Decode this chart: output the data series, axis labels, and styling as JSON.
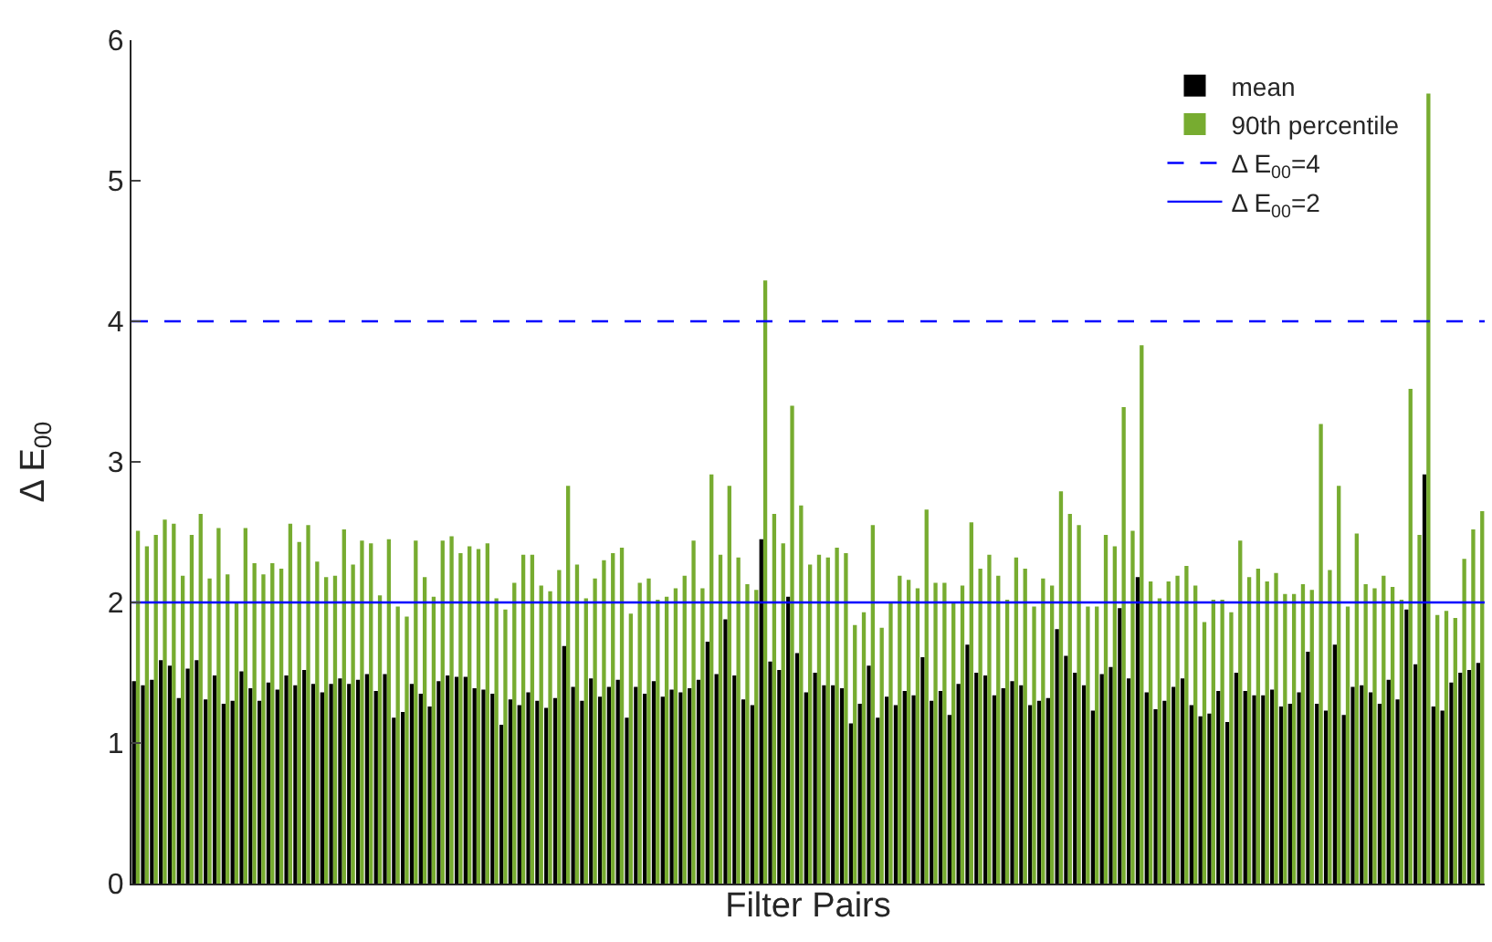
{
  "chart_data": {
    "type": "bar",
    "xlabel": "Filter Pairs",
    "ylabel": "Δ E$_{00}$",
    "categories": [
      null,
      null,
      null,
      null,
      null,
      null,
      null,
      null,
      null,
      null,
      null,
      null,
      null,
      null,
      null,
      null,
      null,
      null,
      null,
      null,
      null,
      null,
      null,
      null,
      null,
      null,
      null,
      null,
      null,
      null,
      null,
      null,
      null,
      null,
      null,
      null,
      null,
      null,
      null,
      null,
      null,
      null,
      null,
      null,
      null,
      null,
      null,
      null,
      null,
      null,
      null,
      null,
      null,
      null,
      null,
      null,
      null,
      null,
      null,
      null,
      null,
      null,
      null,
      null,
      null,
      null,
      null,
      null,
      null,
      null,
      null,
      null,
      null,
      null,
      null,
      null,
      null,
      null,
      null,
      null,
      null,
      null,
      null,
      null,
      null,
      null,
      null,
      null,
      null,
      null,
      null,
      null,
      null,
      null,
      null,
      null,
      null,
      null,
      null,
      null,
      null,
      null,
      null,
      null,
      null,
      null,
      null,
      null,
      null,
      null,
      null,
      null,
      null,
      null,
      null,
      null,
      null,
      null,
      null,
      null,
      null,
      null,
      null,
      null,
      null,
      null,
      null,
      null,
      null,
      null,
      null,
      null,
      null,
      null,
      null,
      null,
      null,
      null,
      null,
      null,
      null,
      null,
      null,
      null,
      null,
      null,
      null,
      null,
      null,
      null,
      null
    ],
    "series": [
      {
        "name": "mean",
        "color": "#000000",
        "values": [
          1.44,
          1.41,
          1.45,
          1.59,
          1.55,
          1.32,
          1.53,
          1.59,
          1.31,
          1.48,
          1.28,
          1.3,
          1.51,
          1.39,
          1.3,
          1.43,
          1.38,
          1.48,
          1.41,
          1.52,
          1.42,
          1.36,
          1.42,
          1.46,
          1.42,
          1.45,
          1.49,
          1.37,
          1.49,
          1.18,
          1.22,
          1.42,
          1.35,
          1.26,
          1.44,
          1.48,
          1.47,
          1.47,
          1.39,
          1.38,
          1.35,
          1.13,
          1.31,
          1.27,
          1.36,
          1.3,
          1.25,
          1.32,
          1.69,
          1.4,
          1.3,
          1.46,
          1.33,
          1.4,
          1.45,
          1.18,
          1.4,
          1.35,
          1.44,
          1.33,
          1.38,
          1.36,
          1.39,
          1.45,
          1.72,
          1.49,
          1.88,
          1.48,
          1.31,
          1.27,
          2.45,
          1.58,
          1.52,
          2.04,
          1.64,
          1.36,
          1.5,
          1.41,
          1.41,
          1.39,
          1.14,
          1.28,
          1.55,
          1.18,
          1.33,
          1.27,
          1.37,
          1.34,
          1.61,
          1.3,
          1.37,
          1.2,
          1.42,
          1.7,
          1.5,
          1.48,
          1.34,
          1.39,
          1.44,
          1.41,
          1.27,
          1.3,
          1.32,
          1.81,
          1.62,
          1.5,
          1.41,
          1.23,
          1.49,
          1.54,
          1.96,
          1.46,
          2.18,
          1.36,
          1.24,
          1.3,
          1.4,
          1.46,
          1.27,
          1.19,
          1.21,
          1.37,
          1.15,
          1.5,
          1.37,
          1.34,
          1.34,
          1.38,
          1.26,
          1.28,
          1.36,
          1.65,
          1.28,
          1.23,
          1.7,
          1.2,
          1.4,
          1.41,
          1.36,
          1.28,
          1.45,
          1.31,
          1.95,
          1.56,
          2.91,
          1.26,
          1.23,
          1.43,
          1.5,
          1.52,
          1.57
        ]
      },
      {
        "name": "90th percentile",
        "color": "#77ac30",
        "values": [
          2.51,
          2.4,
          2.48,
          2.59,
          2.56,
          2.19,
          2.48,
          2.63,
          2.17,
          2.53,
          2.2,
          2.0,
          2.53,
          2.28,
          2.2,
          2.28,
          2.24,
          2.56,
          2.43,
          2.55,
          2.29,
          2.18,
          2.19,
          2.52,
          2.27,
          2.44,
          2.42,
          2.05,
          2.45,
          1.97,
          1.9,
          2.44,
          2.18,
          2.04,
          2.44,
          2.47,
          2.35,
          2.4,
          2.38,
          2.42,
          2.03,
          1.95,
          2.14,
          2.34,
          2.34,
          2.12,
          2.08,
          2.23,
          2.83,
          2.27,
          2.03,
          2.17,
          2.3,
          2.35,
          2.39,
          1.92,
          2.14,
          2.17,
          2.02,
          2.04,
          2.1,
          2.19,
          2.44,
          2.1,
          2.91,
          2.34,
          2.83,
          2.32,
          2.13,
          2.09,
          4.29,
          2.63,
          2.42,
          3.4,
          2.69,
          2.27,
          2.34,
          2.32,
          2.39,
          2.35,
          1.84,
          1.93,
          2.55,
          1.82,
          2.0,
          2.19,
          2.16,
          2.1,
          2.66,
          2.14,
          2.14,
          2.0,
          2.12,
          2.57,
          2.24,
          2.34,
          2.19,
          2.02,
          2.32,
          2.24,
          1.97,
          2.17,
          2.12,
          2.79,
          2.63,
          2.55,
          1.97,
          1.97,
          2.48,
          2.4,
          3.39,
          2.51,
          3.83,
          2.15,
          2.03,
          2.15,
          2.19,
          2.26,
          2.12,
          1.86,
          2.02,
          2.02,
          1.93,
          2.44,
          2.18,
          2.24,
          2.15,
          2.21,
          2.06,
          2.06,
          2.13,
          2.09,
          3.27,
          2.23,
          2.83,
          1.97,
          2.49,
          2.13,
          2.1,
          2.19,
          2.11,
          2.02,
          3.52,
          2.48,
          5.62,
          1.91,
          1.94,
          1.89,
          2.31,
          2.52,
          2.65
        ]
      }
    ],
    "ylim": [
      0,
      6
    ],
    "yticks": [
      0,
      1,
      2,
      3,
      4,
      5,
      6
    ],
    "ref_lines": [
      {
        "axis": "y",
        "value": 4,
        "label": "Δ E$_{00}$=4",
        "color": "#0000ff",
        "line_style": "dashed"
      },
      {
        "axis": "y",
        "value": 2,
        "label": "Δ E$_{00}$=2",
        "color": "#0000ff",
        "line_style": "solid"
      }
    ],
    "legend": "top right",
    "tick_labels": "y"
  }
}
